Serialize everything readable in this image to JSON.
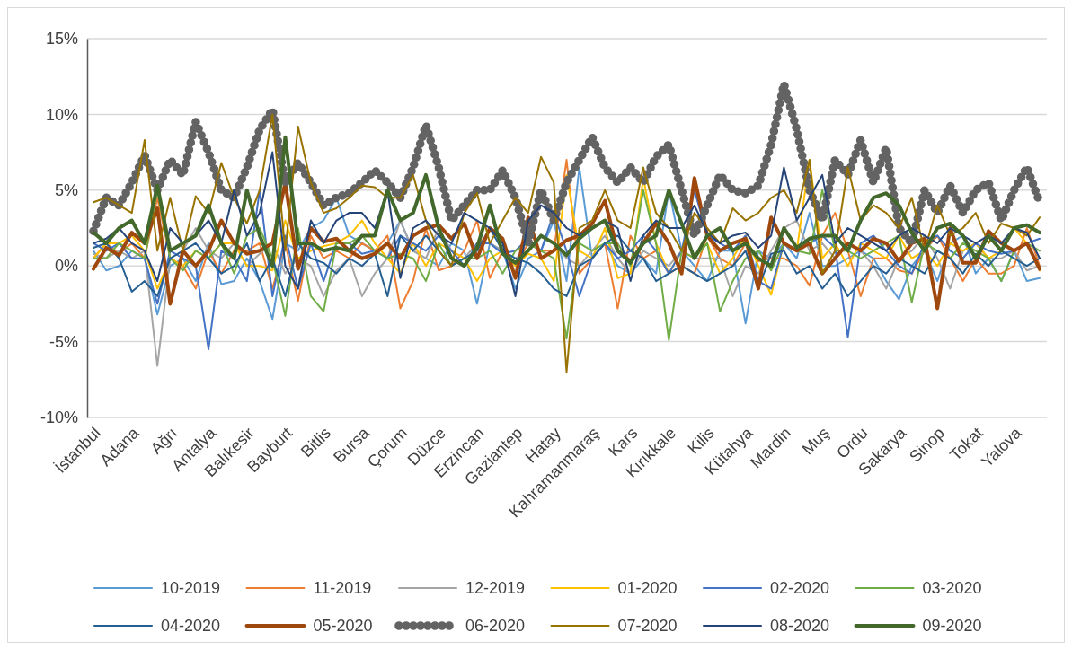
{
  "chart_data": {
    "type": "line",
    "categories": [
      "İstanbul",
      null,
      null,
      "Adana",
      null,
      null,
      "Ağrı",
      null,
      null,
      "Antalya",
      null,
      null,
      "Balıkesir",
      null,
      null,
      "Bayburt",
      null,
      null,
      "Bitlis",
      null,
      null,
      "Bursa",
      null,
      null,
      "Çorum",
      null,
      null,
      "Düzce",
      null,
      null,
      "Erzincan",
      null,
      null,
      "Gaziantep",
      null,
      null,
      "Hatay",
      null,
      null,
      "Kahramanmaraş",
      null,
      null,
      "Kars",
      null,
      null,
      "Kırıkkale",
      null,
      null,
      "Kilis",
      null,
      null,
      "Kütahya",
      null,
      null,
      "Mardin",
      null,
      null,
      "Muş",
      null,
      null,
      "Ordu",
      null,
      null,
      "Sakarya",
      null,
      null,
      "Sinop",
      null,
      null,
      "Tokat",
      null,
      null,
      "Yalova",
      null,
      null
    ],
    "ylim": [
      -10,
      15
    ],
    "yticks": [
      {
        "value": -10,
        "label": "-10%"
      },
      {
        "value": -5,
        "label": "-5%"
      },
      {
        "value": 0,
        "label": "0%"
      },
      {
        "value": 5,
        "label": "5%"
      },
      {
        "value": 10,
        "label": "10%"
      },
      {
        "value": 15,
        "label": "15%"
      }
    ],
    "grid": "y",
    "legend": "bottom",
    "marker": "none",
    "series": [
      {
        "name": "10-2019",
        "color": "#5b9bd5",
        "values": [
          1.0,
          -0.3,
          0.0,
          1.0,
          0.5,
          -3.2,
          0.0,
          0.5,
          -1.0,
          1.5,
          -1.2,
          -1.0,
          0.5,
          -1.0,
          -3.5,
          1.5,
          1.0,
          2.5,
          3.0,
          4.5,
          2.0,
          1.5,
          1.0,
          1.5,
          3.0,
          1.0,
          0.5,
          0.0,
          1.5,
          1.0,
          -2.5,
          1.5,
          1.0,
          -1.5,
          0.5,
          1.0,
          3.0,
          -1.0,
          6.5,
          0.5,
          1.5,
          0.0,
          -0.5,
          0.5,
          -0.5,
          5.0,
          1.0,
          0.0,
          -1.0,
          1.0,
          1.0,
          -3.8,
          1.0,
          0.5,
          1.5,
          0.5,
          3.5,
          0.0,
          0.0,
          0.5,
          1.0,
          0.5,
          -1.0,
          -2.2,
          0.0,
          1.0,
          -1.0,
          1.5,
          2.0,
          -0.5,
          0.5,
          -1.0,
          1.0,
          -1.0,
          -0.8
        ]
      },
      {
        "name": "11-2019",
        "color": "#ed7d31",
        "values": [
          0.5,
          1.5,
          0.8,
          1.5,
          0.5,
          4.5,
          0.5,
          0.0,
          -1.5,
          1.0,
          -0.5,
          1.0,
          1.0,
          1.5,
          -1.5,
          1.5,
          -2.3,
          2.0,
          0.5,
          1.0,
          0.5,
          1.5,
          1.0,
          2.0,
          -2.8,
          -1.0,
          2.5,
          -0.3,
          0.0,
          1.0,
          3.0,
          -0.8,
          1.0,
          0.0,
          1.5,
          1.0,
          1.0,
          7.0,
          -0.5,
          0.5,
          1.5,
          -2.8,
          2.0,
          0.5,
          1.0,
          -0.5,
          0.0,
          -0.5,
          2.0,
          0.5,
          0.0,
          1.5,
          0.3,
          0.5,
          0.5,
          0.0,
          -1.3,
          2.0,
          3.5,
          1.0,
          -2.0,
          0.5,
          0.5,
          -0.3,
          -0.5,
          1.0,
          2.0,
          0.5,
          -1.0,
          0.5,
          -0.5,
          -0.5,
          0.0,
          2.5,
          0.0
        ]
      },
      {
        "name": "12-2019",
        "color": "#a5a5a5",
        "values": [
          0.8,
          0.5,
          1.0,
          0.5,
          1.0,
          -6.6,
          0.5,
          1.0,
          2.5,
          1.0,
          0.5,
          1.5,
          0.0,
          0.8,
          1.5,
          -0.5,
          0.5,
          0.0,
          -2.0,
          -0.3,
          0.5,
          -2.0,
          -0.5,
          0.5,
          3.0,
          1.0,
          0.5,
          2.5,
          1.0,
          0.5,
          1.5,
          1.5,
          1.0,
          0.5,
          1.0,
          2.0,
          1.5,
          0.5,
          0.0,
          1.0,
          2.0,
          0.5,
          -0.5,
          1.0,
          0.5,
          0.0,
          1.0,
          0.5,
          0.5,
          0.5,
          -2.0,
          0.0,
          -0.5,
          1.0,
          2.5,
          3.0,
          1.0,
          1.5,
          0.5,
          1.5,
          1.0,
          0.0,
          -1.5,
          0.5,
          1.0,
          2.0,
          0.5,
          -1.5,
          1.0,
          1.5,
          0.5,
          0.5,
          1.0,
          -0.3,
          0.0
        ]
      },
      {
        "name": "01-2020",
        "color": "#ffc000",
        "values": [
          0.5,
          1.5,
          1.5,
          2.0,
          1.0,
          -1.5,
          0.5,
          0.0,
          1.0,
          0.5,
          1.5,
          1.5,
          0.0,
          0.0,
          -0.3,
          3.0,
          0.5,
          1.0,
          1.3,
          1.5,
          2.0,
          3.0,
          1.5,
          0.5,
          -0.5,
          1.5,
          0.0,
          1.5,
          1.0,
          0.5,
          -1.0,
          0.5,
          1.0,
          0.0,
          0.8,
          0.5,
          -1.0,
          6.0,
          1.0,
          0.5,
          2.5,
          -0.8,
          -0.5,
          5.8,
          1.5,
          -0.5,
          1.0,
          0.5,
          1.5,
          -0.5,
          0.5,
          2.0,
          0.0,
          -1.9,
          1.5,
          1.0,
          7.0,
          0.5,
          1.5,
          0.0,
          1.5,
          1.0,
          0.5,
          2.0,
          0.5,
          1.0,
          0.0,
          1.5,
          1.0,
          1.5,
          0.5,
          1.0,
          2.5,
          1.5,
          -0.3
        ]
      },
      {
        "name": "02-2020",
        "color": "#4472c4",
        "values": [
          1.5,
          1.0,
          1.5,
          0.5,
          0.5,
          -2.5,
          1.0,
          0.5,
          0.0,
          -5.5,
          1.0,
          0.5,
          -1.0,
          5.0,
          -2.0,
          2.0,
          -1.5,
          1.5,
          -1.0,
          1.5,
          1.5,
          0.8,
          1.0,
          0.5,
          2.0,
          1.5,
          1.0,
          2.0,
          1.0,
          0.0,
          1.5,
          1.5,
          0.8,
          1.0,
          1.8,
          1.0,
          3.5,
          1.0,
          -2.0,
          0.5,
          1.5,
          0.5,
          1.0,
          2.0,
          1.0,
          -0.5,
          1.0,
          5.0,
          2.0,
          1.5,
          1.0,
          2.0,
          -1.0,
          -1.5,
          1.5,
          1.0,
          1.5,
          2.0,
          1.2,
          -4.7,
          1.5,
          2.0,
          1.0,
          0.0,
          -0.5,
          1.5,
          2.0,
          1.0,
          0.5,
          1.5,
          1.0,
          0.8,
          1.0,
          1.5,
          1.8
        ]
      },
      {
        "name": "03-2020",
        "color": "#70ad47",
        "values": [
          0.5,
          0.5,
          1.5,
          1.0,
          0.5,
          5.0,
          0.5,
          -0.3,
          1.0,
          0.5,
          1.5,
          -0.5,
          2.0,
          2.5,
          0.5,
          -3.3,
          2.5,
          -2.0,
          -3.0,
          1.5,
          1.5,
          2.0,
          1.0,
          0.5,
          0.8,
          0.5,
          -1.0,
          1.5,
          0.0,
          0.5,
          0.5,
          1.0,
          -0.5,
          1.0,
          1.5,
          1.0,
          0.5,
          -4.8,
          1.5,
          1.0,
          1.5,
          1.5,
          0.0,
          5.0,
          1.5,
          -4.9,
          1.0,
          0.5,
          1.5,
          -3.0,
          -1.0,
          0.5,
          1.0,
          -0.3,
          1.5,
          1.0,
          0.8,
          5.0,
          1.0,
          1.0,
          0.5,
          1.0,
          1.5,
          2.0,
          -2.4,
          1.5,
          1.0,
          0.5,
          1.5,
          1.0,
          0.5,
          -1.0,
          1.0,
          1.5,
          1.0
        ]
      },
      {
        "name": "04-2020",
        "color": "#255e91",
        "values": [
          1.2,
          1.5,
          0.5,
          -1.7,
          -1.0,
          -2.0,
          0.5,
          1.0,
          1.5,
          0.5,
          -0.5,
          0.0,
          1.5,
          -1.0,
          0.5,
          -2.0,
          1.5,
          0.5,
          0.2,
          -0.5,
          0.5,
          0.0,
          0.8,
          -2.0,
          2.0,
          1.0,
          2.0,
          1.0,
          0.0,
          0.5,
          1.0,
          2.5,
          1.0,
          0.5,
          0.2,
          -0.5,
          -1.5,
          -2.0,
          0.0,
          0.5,
          1.5,
          2.0,
          1.0,
          0.5,
          -1.0,
          -0.5,
          0.0,
          -0.5,
          -1.0,
          -0.5,
          0.0,
          1.0,
          -1.5,
          0.8,
          1.0,
          -0.5,
          0.0,
          -1.5,
          -0.5,
          -2.0,
          -1.0,
          0.0,
          -0.5,
          0.5,
          0.0,
          -0.5,
          1.0,
          0.5,
          -0.5,
          0.8,
          0.0,
          1.0,
          0.5,
          0.0,
          0.5
        ]
      },
      {
        "name": "05-2020",
        "color": "#9e480e",
        "values": [
          -0.2,
          1.2,
          0.7,
          2.2,
          1.5,
          3.8,
          -2.5,
          1.0,
          0.0,
          1.0,
          3.0,
          1.5,
          0.8,
          1.0,
          1.5,
          5.5,
          -0.2,
          2.5,
          1.6,
          1.8,
          1.0,
          0.5,
          0.8,
          1.5,
          0.5,
          2.0,
          2.5,
          2.7,
          1.8,
          2.8,
          0.5,
          2.5,
          1.8,
          -0.8,
          3.2,
          0.5,
          1.0,
          1.7,
          2.0,
          2.8,
          4.3,
          1.0,
          0.3,
          1.5,
          2.8,
          1.5,
          -0.5,
          5.8,
          2.0,
          1.0,
          1.5,
          1.8,
          -1.5,
          3.2,
          1.5,
          1.0,
          1.5,
          -0.5,
          0.5,
          1.5,
          1.0,
          1.8,
          1.5,
          0.3,
          1.5,
          1.8,
          -2.8,
          2.5,
          0.2,
          0.2,
          2.3,
          1.5,
          1.0,
          1.5,
          -0.2
        ]
      },
      {
        "name": "06-2020",
        "color": "#636363",
        "line_style": "dotted",
        "values": [
          2.3,
          4.5,
          4.0,
          5.5,
          7.3,
          5.0,
          7.0,
          6.0,
          9.5,
          7.5,
          5.0,
          4.5,
          6.5,
          9.0,
          10.3,
          5.5,
          6.8,
          5.5,
          4.0,
          4.5,
          4.8,
          5.5,
          6.3,
          5.5,
          4.5,
          6.5,
          9.3,
          6.5,
          3.0,
          4.0,
          5.0,
          5.0,
          6.3,
          4.5,
          1.5,
          5.0,
          3.0,
          5.5,
          7.0,
          8.5,
          6.5,
          5.5,
          6.5,
          5.5,
          7.2,
          8.0,
          5.0,
          2.0,
          4.0,
          6.0,
          5.0,
          4.8,
          5.3,
          8.0,
          12.0,
          9.0,
          5.0,
          3.0,
          7.0,
          6.0,
          8.3,
          5.5,
          7.8,
          2.5,
          1.5,
          5.0,
          3.5,
          5.3,
          3.5,
          5.0,
          5.5,
          3.0,
          5.0,
          6.5,
          4.2
        ]
      },
      {
        "name": "07-2020",
        "color": "#997300",
        "values": [
          4.2,
          4.5,
          4.0,
          3.5,
          8.3,
          1.0,
          4.5,
          1.0,
          4.6,
          3.5,
          6.8,
          4.5,
          2.8,
          5.0,
          10.0,
          1.0,
          9.2,
          5.5,
          3.5,
          3.8,
          4.5,
          5.3,
          5.2,
          4.5,
          4.5,
          6.0,
          3.0,
          1.0,
          0.0,
          3.5,
          4.8,
          1.5,
          3.0,
          4.5,
          3.5,
          7.2,
          5.5,
          -7.0,
          2.5,
          3.0,
          5.0,
          3.0,
          2.5,
          6.5,
          3.5,
          2.5,
          1.0,
          3.5,
          2.5,
          1.5,
          3.8,
          3.0,
          3.5,
          4.5,
          5.0,
          3.5,
          7.0,
          -0.5,
          1.0,
          6.5,
          3.0,
          4.0,
          3.5,
          2.5,
          4.5,
          1.0,
          4.0,
          2.0,
          2.5,
          3.5,
          1.5,
          2.8,
          2.5,
          2.0,
          3.2
        ]
      },
      {
        "name": "08-2020",
        "color": "#264478",
        "values": [
          1.5,
          1.8,
          2.5,
          1.5,
          1.0,
          -1.0,
          2.5,
          1.5,
          2.0,
          3.0,
          1.5,
          5.0,
          2.0,
          3.5,
          7.5,
          0.0,
          -1.5,
          3.0,
          1.5,
          3.0,
          3.5,
          3.5,
          2.5,
          5.0,
          -0.8,
          2.5,
          3.0,
          2.0,
          1.5,
          3.5,
          3.0,
          2.5,
          1.5,
          -2.0,
          3.0,
          4.0,
          3.5,
          2.5,
          2.0,
          2.5,
          3.0,
          2.5,
          -1.0,
          2.0,
          3.0,
          2.5,
          2.5,
          4.0,
          2.2,
          1.5,
          2.0,
          2.2,
          1.2,
          2.0,
          6.5,
          3.0,
          4.5,
          6.0,
          1.5,
          2.5,
          2.0,
          1.5,
          1.0,
          2.0,
          2.5,
          2.0,
          1.5,
          2.5,
          2.0,
          1.5,
          2.0,
          1.5,
          2.5,
          2.2,
          0.5
        ]
      },
      {
        "name": "09-2020",
        "color": "#43682b",
        "values": [
          2.2,
          1.5,
          2.5,
          3.0,
          1.5,
          5.3,
          1.0,
          1.5,
          2.0,
          4.0,
          1.5,
          0.5,
          5.0,
          2.0,
          0.0,
          8.5,
          1.5,
          1.5,
          1.0,
          1.2,
          1.0,
          2.0,
          2.0,
          5.0,
          3.0,
          3.5,
          6.0,
          2.5,
          0.5,
          0.0,
          1.2,
          4.0,
          0.8,
          0.2,
          1.0,
          2.0,
          1.5,
          0.7,
          1.8,
          2.5,
          3.0,
          1.0,
          0.2,
          1.5,
          2.0,
          5.0,
          2.8,
          0.5,
          2.0,
          2.5,
          1.0,
          1.5,
          0.5,
          0.0,
          2.5,
          1.2,
          1.8,
          2.0,
          2.0,
          1.0,
          3.0,
          4.5,
          4.8,
          4.0,
          2.2,
          1.0,
          2.5,
          2.8,
          2.0,
          0.5,
          2.0,
          1.0,
          2.5,
          2.7,
          2.2
        ]
      }
    ]
  }
}
